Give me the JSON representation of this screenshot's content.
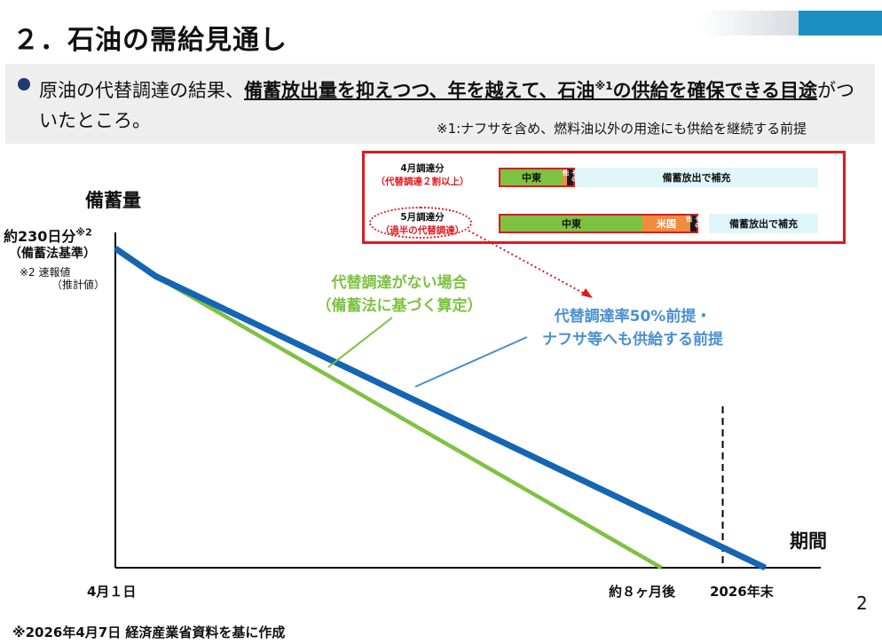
{
  "page": {
    "title": "２．石油の需給見通し",
    "lead_plain_1": "原油の代替調達の結果、",
    "lead_bold_1": "備蓄放出量を抑えつつ、年を越えて、石油",
    "lead_sup": "※1",
    "lead_bold_2": "の供給を確保できる目途",
    "lead_plain_2": "がついたところ。",
    "note_1": "※1:ナフサを含め、燃料油以外の用途にも供給を継続する前提",
    "page_number": "2",
    "footer": "※2026年4月7日  経済産業省資料を基に作成"
  },
  "procurement": {
    "april": {
      "label": "4月調達分",
      "sublabel": "（代替調達２割以上）",
      "segments": [
        {
          "label": "中東",
          "share": 0.2,
          "color": "#7dc242"
        },
        {
          "label": "米国",
          "share": 0.015,
          "color": "#f08c3c"
        },
        {
          "label": "その他",
          "share": 0.025,
          "color": "#1a1a1a"
        }
      ],
      "remainder_label": "備蓄放出で補充"
    },
    "may": {
      "label": "5月調達分",
      "sublabel": "（過半の代替調達）",
      "segments": [
        {
          "label": "中東",
          "share": 0.45,
          "color": "#7dc242"
        },
        {
          "label": "米国",
          "share": 0.15,
          "color": "#f08c3c"
        },
        {
          "label": "その他",
          "share": 0.025,
          "color": "#1a1a1a"
        }
      ],
      "remainder_label": "備蓄放出で補充"
    }
  },
  "chart_data": {
    "type": "line",
    "title": "",
    "ylabel": "備蓄量",
    "xlabel": "期間",
    "y_start_label": "約230日分",
    "y_start_sup": "※2",
    "y_start_sublabel": "（備蓄法基準）",
    "y_note_1": "※2  速報値",
    "y_note_2": "（推計値）",
    "x_ticks": [
      "4月１日",
      "約８ヶ月後",
      "2026年末"
    ],
    "x_months": [
      0,
      8,
      9
    ],
    "ylim": [
      0,
      230
    ],
    "series": [
      {
        "name": "代替調達がない場合（備蓄法に基づく算定）",
        "label_line1": "代替調達がない場合",
        "label_line2": "（備蓄法に基づく算定）",
        "color": "#7dc242",
        "points": [
          [
            0,
            230
          ],
          [
            0.6,
            210
          ],
          [
            8.15,
            0
          ]
        ]
      },
      {
        "name": "代替調達率50%前提・ナフサ等へも供給する前提",
        "label_line1": "代替調達率50%前提・",
        "label_line2": "ナフサ等へも供給する前提",
        "color": "#1466b4",
        "points": [
          [
            0,
            230
          ],
          [
            0.6,
            210
          ],
          [
            9.7,
            0
          ]
        ]
      }
    ],
    "markers": [
      {
        "x": 9,
        "label": "2026年末",
        "style": "dashed"
      }
    ]
  }
}
